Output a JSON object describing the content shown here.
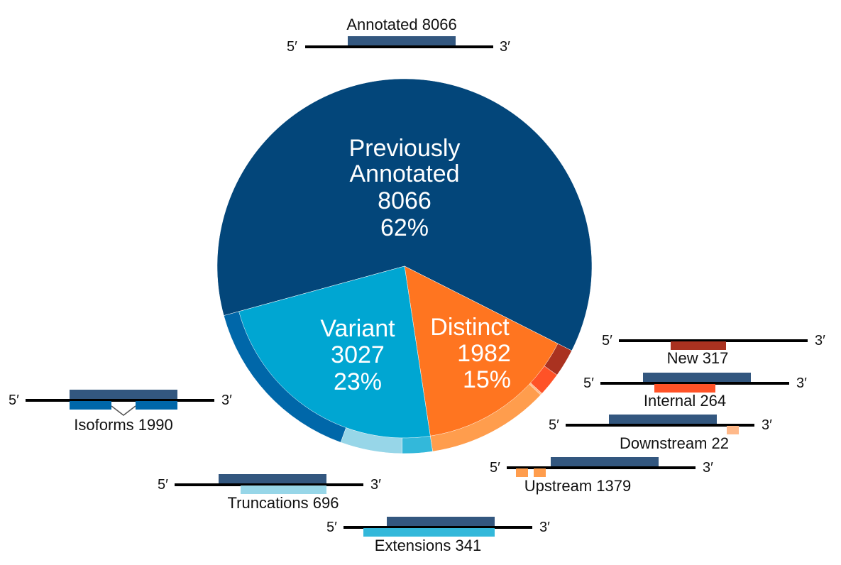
{
  "colors": {
    "annotated": "#03467a",
    "annotated_bar": "#33577f",
    "variant": "#00a6d2",
    "distinct": "#ff7520",
    "line": "#000000",
    "isoforms": "#0067a9",
    "truncations": "#97d6e8",
    "extensions": "#33b8da",
    "new": "#aa3220",
    "internal": "#ff5227",
    "downstream": "#ffb98a",
    "upstream": "#ff9d4d"
  },
  "chart_data": {
    "type": "pie",
    "slices": [
      {
        "key": "annotated",
        "label": "Previously Annotated",
        "value": 8066,
        "percent": "62%"
      },
      {
        "key": "distinct",
        "label": "Distinct",
        "value": 1982,
        "percent": "15%"
      },
      {
        "key": "variant",
        "label": "Variant",
        "value": 3027,
        "percent": "23%"
      }
    ],
    "subcategories": [
      {
        "key": "new",
        "parent": "distinct",
        "label": "New",
        "value": 317
      },
      {
        "key": "internal",
        "parent": "distinct",
        "label": "Internal",
        "value": 264
      },
      {
        "key": "downstream",
        "parent": "distinct",
        "label": "Downstream",
        "value": 22
      },
      {
        "key": "upstream",
        "parent": "distinct",
        "label": "Upstream",
        "value": 1379
      },
      {
        "key": "extensions",
        "parent": "variant",
        "label": "Extensions",
        "value": 341
      },
      {
        "key": "truncations",
        "parent": "variant",
        "label": "Truncations",
        "value": 696
      },
      {
        "key": "isoforms",
        "parent": "variant",
        "label": "Isoforms",
        "value": 1990
      }
    ]
  },
  "labels": {
    "prime5": "5′",
    "prime3": "3′",
    "annotated_line1": "Previously",
    "annotated_line2": "Annotated",
    "annotated_count": "8066",
    "annotated_pct": "62%",
    "variant_name": "Variant",
    "variant_count": "3027",
    "variant_pct": "23%",
    "distinct_name": "Distinct",
    "distinct_count": "1982",
    "distinct_pct": "15%",
    "annotated_top": "Annotated 8066",
    "new": "New 317",
    "internal": "Internal 264",
    "downstream": "Downstream 22",
    "upstream": "Upstream 1379",
    "isoforms": "Isoforms 1990",
    "truncations": "Truncations 696",
    "extensions": "Extensions 341"
  }
}
